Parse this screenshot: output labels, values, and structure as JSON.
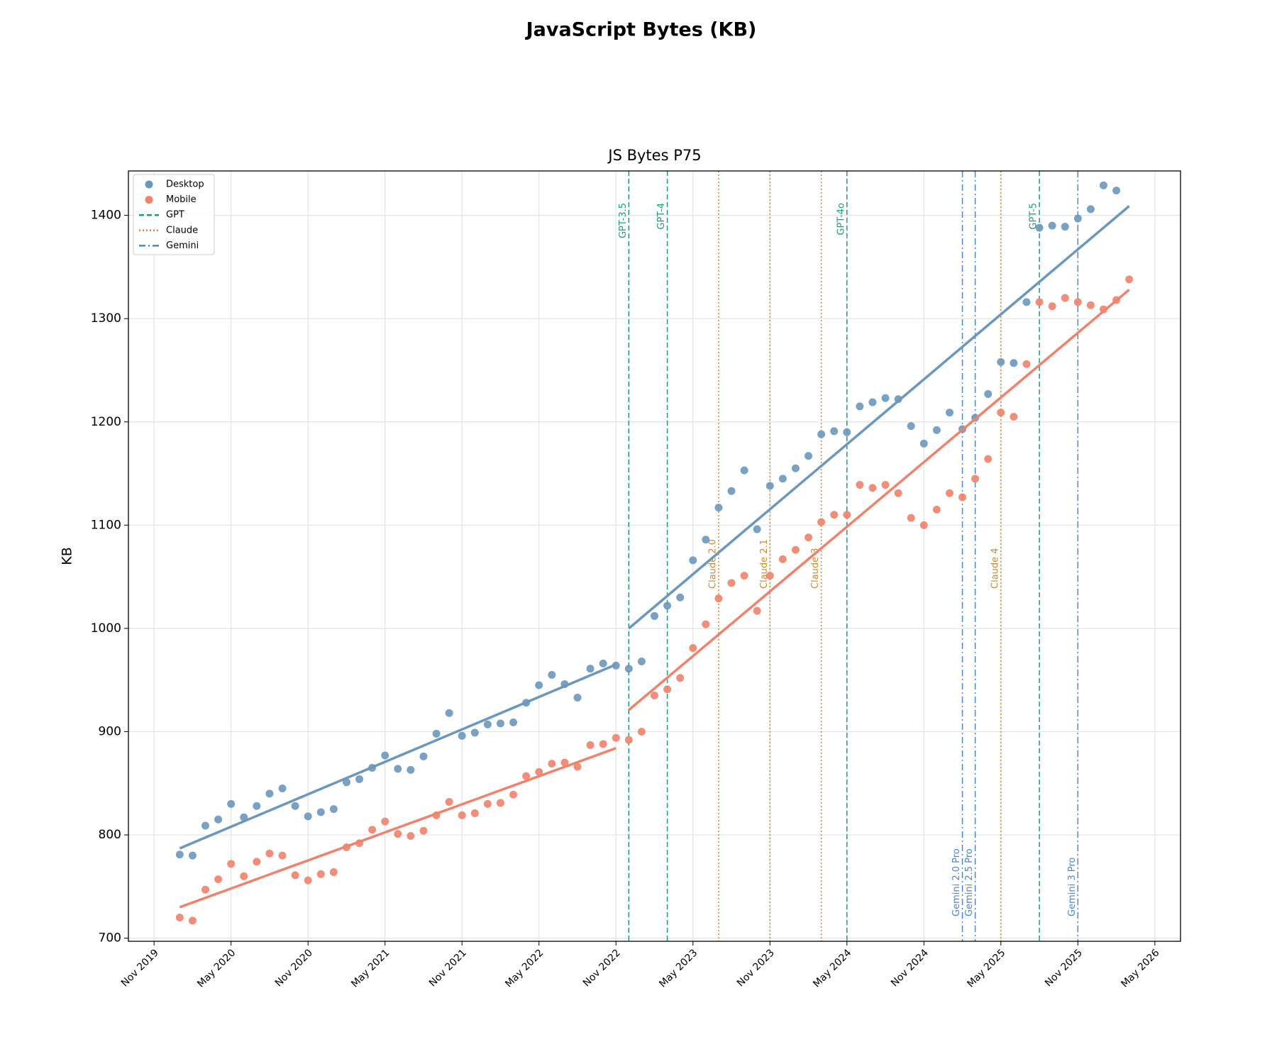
{
  "chart_data": {
    "type": "scatter",
    "title": "JavaScript Bytes (KB)",
    "subtitle": "JS Bytes P75",
    "y_label": "KB",
    "grid": true,
    "legend": "upper left",
    "xlim": [
      "2019-09",
      "2026-07"
    ],
    "ylim": [
      697,
      1443
    ],
    "yticks": [
      700,
      800,
      900,
      1000,
      1100,
      1200,
      1300,
      1400
    ],
    "xticks": [
      {
        "value": "2019-11",
        "label": "Nov 2019"
      },
      {
        "value": "2020-05",
        "label": "May 2020"
      },
      {
        "value": "2020-11",
        "label": "Nov 2020"
      },
      {
        "value": "2021-05",
        "label": "May 2021"
      },
      {
        "value": "2021-11",
        "label": "Nov 2021"
      },
      {
        "value": "2022-05",
        "label": "May 2022"
      },
      {
        "value": "2022-11",
        "label": "Nov 2022"
      },
      {
        "value": "2023-05",
        "label": "May 2023"
      },
      {
        "value": "2023-11",
        "label": "Nov 2023"
      },
      {
        "value": "2024-05",
        "label": "May 2024"
      },
      {
        "value": "2024-11",
        "label": "Nov 2024"
      },
      {
        "value": "2025-05",
        "label": "May 2025"
      },
      {
        "value": "2025-11",
        "label": "Nov 2025"
      },
      {
        "value": "2026-05",
        "label": "May 2026"
      }
    ],
    "x": [
      "2020-01",
      "2020-02",
      "2020-03",
      "2020-04",
      "2020-05",
      "2020-06",
      "2020-07",
      "2020-08",
      "2020-09",
      "2020-10",
      "2020-11",
      "2020-12",
      "2021-01",
      "2021-02",
      "2021-03",
      "2021-04",
      "2021-05",
      "2021-06",
      "2021-07",
      "2021-08",
      "2021-09",
      "2021-10",
      "2021-11",
      "2021-12",
      "2022-01",
      "2022-02",
      "2022-03",
      "2022-04",
      "2022-05",
      "2022-06",
      "2022-07",
      "2022-08",
      "2022-09",
      "2022-10",
      "2022-11",
      "2022-12",
      "2023-01",
      "2023-02",
      "2023-03",
      "2023-04",
      "2023-05",
      "2023-06",
      "2023-07",
      "2023-08",
      "2023-09",
      "2023-10",
      "2023-11",
      "2023-12",
      "2024-01",
      "2024-02",
      "2024-03",
      "2024-04",
      "2024-05",
      "2024-06",
      "2024-07",
      "2024-08",
      "2024-09",
      "2024-10",
      "2024-11",
      "2024-12",
      "2025-01",
      "2025-02",
      "2025-03",
      "2025-04",
      "2025-05",
      "2025-06",
      "2025-07",
      "2025-08",
      "2025-09",
      "2025-10",
      "2025-11",
      "2025-12",
      "2026-01",
      "2026-02",
      "2026-03"
    ],
    "series": [
      {
        "name": "Desktop",
        "color": "#6a97bd",
        "values": [
          781,
          780,
          809,
          815,
          830,
          817,
          828,
          840,
          845,
          828,
          818,
          822,
          825,
          851,
          854,
          865,
          877,
          864,
          863,
          876,
          898,
          918,
          896,
          899,
          907,
          908,
          909,
          928,
          945,
          955,
          946,
          933,
          961,
          966,
          964,
          961,
          968,
          1012,
          1022,
          1030,
          1066,
          1086,
          1117,
          1133,
          1153,
          1096,
          1138,
          1145,
          1155,
          1167,
          1188,
          1191,
          1190,
          1215,
          1219,
          1223,
          1222,
          1196,
          1179,
          1192,
          1209,
          1193,
          1204,
          1227,
          1258,
          1257,
          1316,
          1388,
          1390,
          1389,
          1397,
          1406,
          1429,
          1424,
          null
        ],
        "trend": [
          {
            "x": [
              "2020-01",
              "2022-11"
            ],
            "values": [
              787,
              965
            ]
          },
          {
            "x": [
              "2022-12",
              "2026-03"
            ],
            "values": [
              1000,
              1409
            ]
          }
        ]
      },
      {
        "name": "Mobile",
        "color": "#f0826c",
        "values": [
          720,
          717,
          747,
          757,
          772,
          760,
          774,
          782,
          780,
          761,
          756,
          762,
          764,
          788,
          792,
          805,
          813,
          801,
          799,
          804,
          819,
          832,
          819,
          821,
          830,
          831,
          839,
          857,
          861,
          869,
          870,
          866,
          887,
          888,
          894,
          892,
          900,
          935,
          941,
          952,
          981,
          1004,
          1029,
          1044,
          1051,
          1017,
          1051,
          1067,
          1076,
          1088,
          1103,
          1110,
          1110,
          1139,
          1136,
          1139,
          1131,
          1107,
          1100,
          1115,
          1131,
          1127,
          1145,
          1164,
          1209,
          1205,
          1256,
          1316,
          1312,
          1320,
          1316,
          1313,
          1309,
          1318,
          1338
        ],
        "trend": [
          {
            "x": [
              "2020-01",
              "2022-11"
            ],
            "values": [
              730,
              884
            ]
          },
          {
            "x": [
              "2022-12",
              "2026-03"
            ],
            "values": [
              921,
              1328
            ]
          }
        ]
      }
    ],
    "event_kinds": [
      {
        "name": "GPT",
        "color": "#1b9e77",
        "dash": "dashed",
        "events": [
          {
            "label": "GPT-3.5",
            "x": "2022-12"
          },
          {
            "label": "GPT-4",
            "x": "2023-03"
          },
          {
            "label": "GPT-4o",
            "x": "2024-05"
          },
          {
            "label": "GPT-5",
            "x": "2025-08"
          }
        ]
      },
      {
        "name": "Claude",
        "color": "#d4862a",
        "dash": "dotted",
        "events": [
          {
            "label": "Claude 2.0",
            "x": "2023-07"
          },
          {
            "label": "Claude 2.1",
            "x": "2023-11"
          },
          {
            "label": "Claude 3",
            "x": "2024-03"
          },
          {
            "label": "Claude 4",
            "x": "2025-05"
          }
        ]
      },
      {
        "name": "Gemini",
        "color": "#4a86d4",
        "dash": "dashdot",
        "events": [
          {
            "label": "Gemini 2.0 Pro",
            "x": "2025-02"
          },
          {
            "label": "Gemini 2.5 Pro",
            "x": "2025-03"
          },
          {
            "label": "Gemini 3 Pro",
            "x": "2025-11"
          }
        ]
      }
    ]
  }
}
